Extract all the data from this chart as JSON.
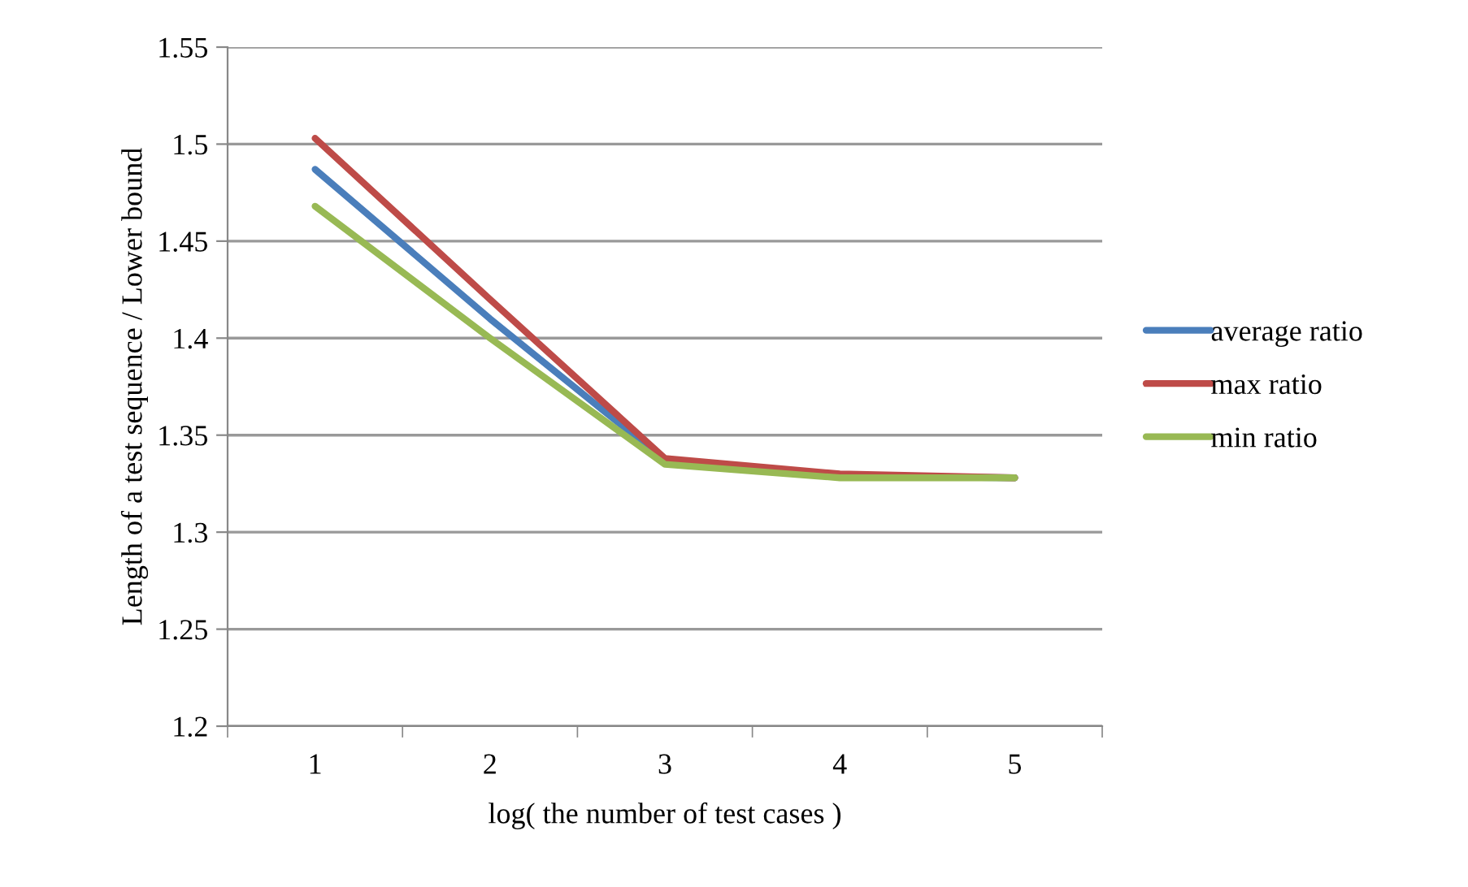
{
  "chart_data": {
    "type": "line",
    "xlabel": "log( the number of test cases )",
    "ylabel": "Length of a test sequence / Lower bound",
    "categories": [
      "1",
      "2",
      "3",
      "4",
      "5"
    ],
    "series": [
      {
        "name": "average ratio",
        "color": "#4a7ebb",
        "values": [
          1.487,
          1.41,
          1.337,
          1.329,
          1.328
        ]
      },
      {
        "name": "max ratio",
        "color": "#be4b48",
        "values": [
          1.503,
          1.42,
          1.338,
          1.33,
          1.328
        ]
      },
      {
        "name": "min ratio",
        "color": "#98b954",
        "values": [
          1.468,
          1.4,
          1.335,
          1.328,
          1.328
        ]
      }
    ],
    "ylim": [
      1.2,
      1.55
    ],
    "yticks": [
      1.2,
      1.25,
      1.3,
      1.35,
      1.4,
      1.45,
      1.5,
      1.55
    ],
    "grid": "y",
    "legend": "right",
    "marker": "none",
    "line_style": "solid"
  }
}
